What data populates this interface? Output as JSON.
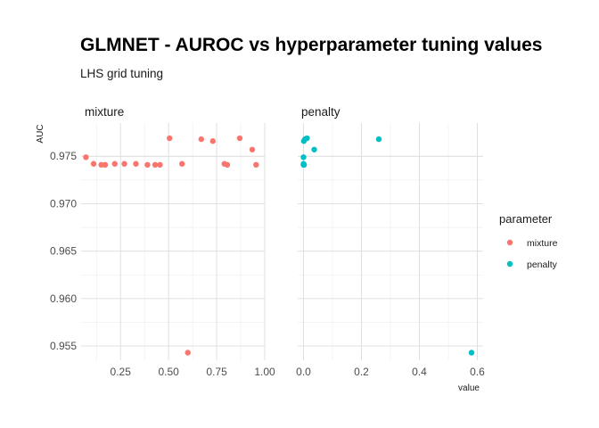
{
  "chart_data": {
    "type": "scatter",
    "title": "GLMNET - AUROC vs hyperparameter tuning values",
    "subtitle": "LHS grid tuning",
    "ylabel": "AUC",
    "xlabel": "value",
    "legend": {
      "title": "parameter",
      "placement": "right",
      "entries": [
        {
          "label": "mixture",
          "color": "#F8766D"
        },
        {
          "label": "penalty",
          "color": "#00BFC4"
        }
      ]
    },
    "ylim": [
      0.9535,
      0.9785
    ],
    "yticks": [
      0.955,
      0.96,
      0.965,
      0.97,
      0.975
    ],
    "ytick_labels": [
      "0.955",
      "0.960",
      "0.965",
      "0.970",
      "0.975"
    ],
    "grid": true,
    "facets": [
      {
        "strip": "mixture",
        "color": "#F8766D",
        "xlim": [
          0.045,
          1.0
        ],
        "xticks": [
          0.25,
          0.5,
          0.75,
          1.0
        ],
        "xtick_labels": [
          "0.25",
          "0.50",
          "0.75",
          "1.00"
        ],
        "points": [
          {
            "x": 0.07,
            "y": 0.9749
          },
          {
            "x": 0.11,
            "y": 0.9742
          },
          {
            "x": 0.15,
            "y": 0.9741
          },
          {
            "x": 0.17,
            "y": 0.9741
          },
          {
            "x": 0.22,
            "y": 0.9742
          },
          {
            "x": 0.27,
            "y": 0.9742
          },
          {
            "x": 0.33,
            "y": 0.9742
          },
          {
            "x": 0.39,
            "y": 0.9741
          },
          {
            "x": 0.43,
            "y": 0.9741
          },
          {
            "x": 0.455,
            "y": 0.9741
          },
          {
            "x": 0.505,
            "y": 0.9769
          },
          {
            "x": 0.57,
            "y": 0.9742
          },
          {
            "x": 0.6,
            "y": 0.9543
          },
          {
            "x": 0.67,
            "y": 0.9768
          },
          {
            "x": 0.73,
            "y": 0.9766
          },
          {
            "x": 0.79,
            "y": 0.9742
          },
          {
            "x": 0.805,
            "y": 0.9741
          },
          {
            "x": 0.87,
            "y": 0.9769
          },
          {
            "x": 0.935,
            "y": 0.9757
          },
          {
            "x": 0.955,
            "y": 0.9741
          }
        ]
      },
      {
        "strip": "penalty",
        "color": "#00BFC4",
        "xlim": [
          -0.02,
          0.62
        ],
        "xticks": [
          0.0,
          0.2,
          0.4,
          0.6
        ],
        "xtick_labels": [
          "0.0",
          "0.2",
          "0.4",
          "0.6"
        ],
        "points": [
          {
            "x": 0.0,
            "y": 0.9749
          },
          {
            "x": 0.0,
            "y": 0.9742
          },
          {
            "x": 0.0,
            "y": 0.9741
          },
          {
            "x": 0.002,
            "y": 0.9741
          },
          {
            "x": 0.001,
            "y": 0.9766
          },
          {
            "x": 0.005,
            "y": 0.9768
          },
          {
            "x": 0.012,
            "y": 0.9769
          },
          {
            "x": 0.037,
            "y": 0.9757
          },
          {
            "x": 0.26,
            "y": 0.9768
          },
          {
            "x": 0.58,
            "y": 0.9543
          }
        ]
      }
    ]
  }
}
